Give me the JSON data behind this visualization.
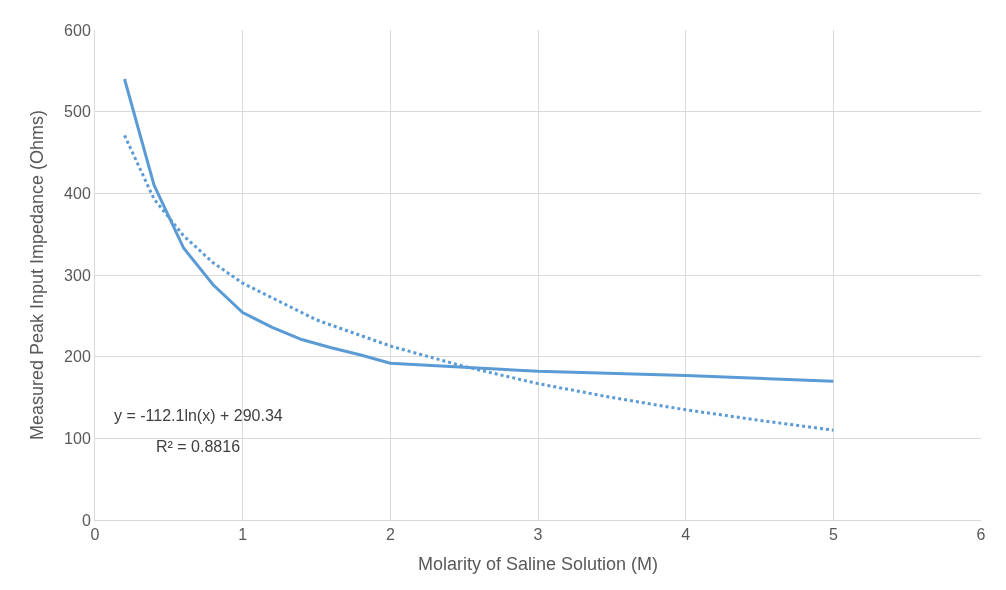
{
  "chart_data": {
    "type": "line",
    "xlabel": "Molarity of Saline Solution (M)",
    "ylabel": "Measured Peak Input Impedance (Ohms)",
    "xlim": [
      0,
      6
    ],
    "xticks": [
      0,
      1,
      2,
      3,
      4,
      5,
      6
    ],
    "ylim": [
      0,
      600
    ],
    "yticks": [
      0,
      100,
      200,
      300,
      400,
      500,
      600
    ],
    "grid": true,
    "marker": "none",
    "series": [
      {
        "color": "#5b9bd5",
        "line_style": "solid",
        "x": [
          0.2,
          0.4,
          0.6,
          0.8,
          1.0,
          1.2,
          1.4,
          1.6,
          1.8,
          2.0,
          3,
          4,
          5
        ],
        "values": [
          540,
          410,
          333,
          288,
          254,
          236,
          221,
          211,
          202,
          192,
          182,
          177,
          170
        ]
      },
      {
        "color": "#5b9bd5",
        "line_style": "dotted",
        "x": [
          0.2,
          0.4,
          0.6,
          0.8,
          1.0,
          1.5,
          2.0,
          2.5,
          3.0,
          3.5,
          4.0,
          4.5,
          5.0
        ],
        "values": [
          471,
          393,
          348,
          315,
          290,
          245,
          213,
          188,
          167,
          150,
          135,
          122,
          110
        ]
      }
    ],
    "annotations": [
      "y = -112.1ln(x) + 290.34",
      "R² = 0.8816"
    ]
  }
}
